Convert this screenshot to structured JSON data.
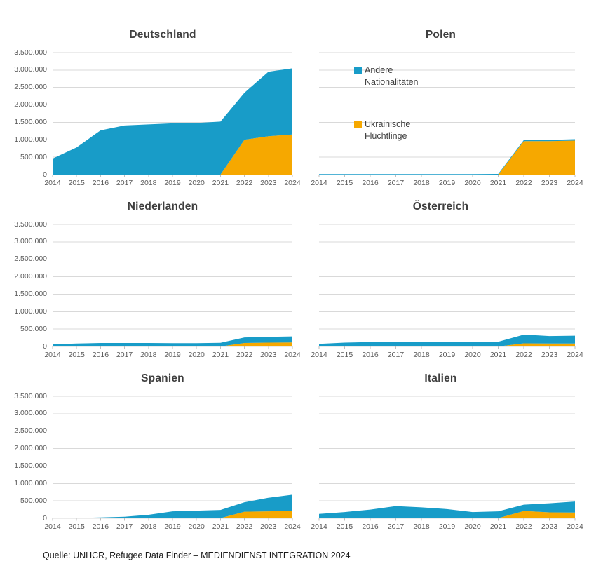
{
  "page": {
    "background": "#ffffff"
  },
  "colors": {
    "andere_nationalitaeten": "#189CC8",
    "ukrainische_fluechtlinge": "#F6A800",
    "gridline": "#D9D9D9",
    "axis_text": "#595959",
    "title_text": "#3F3F3F"
  },
  "legend": {
    "position": "inside-polen-panel",
    "items": [
      {
        "label": "Andere Nationalitäten",
        "color": "#189CC8"
      },
      {
        "label": "Ukrainische Flüchtlinge",
        "color": "#F6A800"
      }
    ]
  },
  "footer": {
    "source_text": "Quelle: UNHCR, Refugee Data Finder – MEDIENDIENST INTEGRATION 2024"
  },
  "chart_data": [
    {
      "type": "area",
      "stacked": true,
      "title": "Deutschland",
      "x": [
        2014,
        2015,
        2016,
        2017,
        2018,
        2019,
        2020,
        2021,
        2022,
        2023,
        2024
      ],
      "ylim": [
        0,
        3500000
      ],
      "grid": true,
      "legend_position": "none",
      "y_ticks": [
        "3.500.000",
        "3.000.000",
        "2.500.000",
        "2.000.000",
        "1.500.000",
        "1.000.000",
        "500.000",
        "0"
      ],
      "series": [
        {
          "name": "Ukrainische Flüchtlinge",
          "color": "#F6A800",
          "values": [
            0,
            0,
            0,
            0,
            0,
            0,
            0,
            0,
            1000000,
            1100000,
            1150000
          ]
        },
        {
          "name": "Andere Nationalitäten",
          "color": "#189CC8",
          "values": [
            460000,
            780000,
            1270000,
            1410000,
            1440000,
            1470000,
            1480000,
            1520000,
            1350000,
            1850000,
            1900000
          ]
        }
      ]
    },
    {
      "type": "area",
      "stacked": true,
      "title": "Polen",
      "x": [
        2014,
        2015,
        2016,
        2017,
        2018,
        2019,
        2020,
        2021,
        2022,
        2023,
        2024
      ],
      "ylim": [
        0,
        3500000
      ],
      "grid": true,
      "legend_position": "inside",
      "series": [
        {
          "name": "Ukrainische Flüchtlinge",
          "color": "#F6A800",
          "values": [
            0,
            0,
            0,
            0,
            0,
            0,
            0,
            0,
            960000,
            960000,
            975000
          ]
        },
        {
          "name": "Andere Nationalitäten",
          "color": "#189CC8",
          "values": [
            15000,
            15000,
            15000,
            15000,
            15000,
            15000,
            15000,
            20000,
            30000,
            35000,
            40000
          ]
        }
      ]
    },
    {
      "type": "area",
      "stacked": true,
      "title": "Niederlanden",
      "x": [
        2014,
        2015,
        2016,
        2017,
        2018,
        2019,
        2020,
        2021,
        2022,
        2023,
        2024
      ],
      "ylim": [
        0,
        3500000
      ],
      "grid": true,
      "legend_position": "none",
      "y_ticks": [
        "3.500.000",
        "3.000.000",
        "2.500.000",
        "2.000.000",
        "1.500.000",
        "1.000.000",
        "500.000",
        "0"
      ],
      "series": [
        {
          "name": "Ukrainische Flüchtlinge",
          "color": "#F6A800",
          "values": [
            0,
            0,
            0,
            0,
            0,
            0,
            0,
            0,
            100000,
            110000,
            115000
          ]
        },
        {
          "name": "Andere Nationalitäten",
          "color": "#189CC8",
          "values": [
            60000,
            85000,
            100000,
            100000,
            100000,
            95000,
            95000,
            105000,
            160000,
            165000,
            175000
          ]
        }
      ]
    },
    {
      "type": "area",
      "stacked": true,
      "title": "Österreich",
      "x": [
        2014,
        2015,
        2016,
        2017,
        2018,
        2019,
        2020,
        2021,
        2022,
        2023,
        2024
      ],
      "ylim": [
        0,
        3500000
      ],
      "grid": true,
      "legend_position": "none",
      "series": [
        {
          "name": "Ukrainische Flüchtlinge",
          "color": "#F6A800",
          "values": [
            0,
            0,
            0,
            0,
            0,
            0,
            0,
            0,
            90000,
            85000,
            85000
          ]
        },
        {
          "name": "Andere Nationalitäten",
          "color": "#189CC8",
          "values": [
            75000,
            110000,
            125000,
            130000,
            125000,
            125000,
            125000,
            135000,
            250000,
            215000,
            225000
          ]
        }
      ]
    },
    {
      "type": "area",
      "stacked": true,
      "title": "Spanien",
      "x": [
        2014,
        2015,
        2016,
        2017,
        2018,
        2019,
        2020,
        2021,
        2022,
        2023,
        2024
      ],
      "ylim": [
        0,
        3500000
      ],
      "grid": true,
      "legend_position": "none",
      "y_ticks": [
        "3.500.000",
        "3.000.000",
        "2.500.000",
        "2.000.000",
        "1.500.000",
        "1.000.000",
        "500.000",
        "0"
      ],
      "series": [
        {
          "name": "Ukrainische Flüchtlinge",
          "color": "#F6A800",
          "values": [
            0,
            0,
            0,
            0,
            0,
            5000,
            5000,
            5000,
            190000,
            200000,
            220000
          ]
        },
        {
          "name": "Andere Nationalitäten",
          "color": "#189CC8",
          "values": [
            5000,
            10000,
            25000,
            45000,
            100000,
            195000,
            215000,
            235000,
            270000,
            390000,
            455000
          ]
        }
      ]
    },
    {
      "type": "area",
      "stacked": true,
      "title": "Italien",
      "x": [
        2014,
        2015,
        2016,
        2017,
        2018,
        2019,
        2020,
        2021,
        2022,
        2023,
        2024
      ],
      "ylim": [
        0,
        3500000
      ],
      "grid": true,
      "legend_position": "none",
      "series": [
        {
          "name": "Ukrainische Flüchtlinge",
          "color": "#F6A800",
          "values": [
            0,
            0,
            0,
            5000,
            8000,
            8000,
            5000,
            5000,
            210000,
            170000,
            165000
          ]
        },
        {
          "name": "Andere Nationalitäten",
          "color": "#189CC8",
          "values": [
            125000,
            180000,
            250000,
            345000,
            305000,
            255000,
            175000,
            195000,
            180000,
            260000,
            315000
          ]
        }
      ]
    }
  ]
}
